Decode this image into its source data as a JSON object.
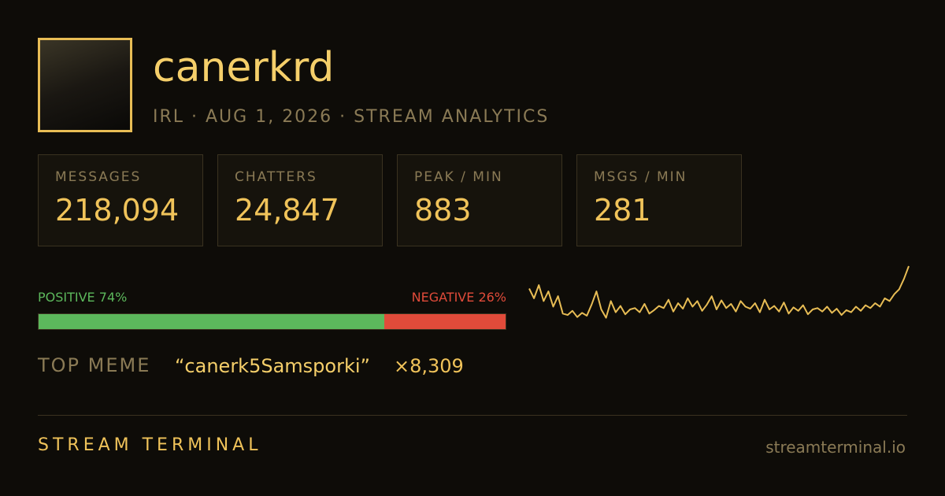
{
  "profile": {
    "name": "canerkrd",
    "subtitle": "IRL · AUG 1, 2026 · STREAM ANALYTICS"
  },
  "stats": [
    {
      "label": "MESSAGES",
      "value": "218,094"
    },
    {
      "label": "CHATTERS",
      "value": "24,847"
    },
    {
      "label": "PEAK / MIN",
      "value": "883"
    },
    {
      "label": "MSGS / MIN",
      "value": "281"
    }
  ],
  "sentiment": {
    "positive_name": "POSITIVE",
    "positive": 74,
    "positive_label": "74%",
    "positive_color": "#5cb85c",
    "negative_name": "NEGATIVE",
    "negative": 26,
    "negative_label": "26%",
    "negative_color": "#e04b3a"
  },
  "sparkline": {
    "type": "line",
    "color": "#e8bd55",
    "ylim": [
      0,
      883
    ],
    "values": [
      560,
      420,
      610,
      380,
      520,
      300,
      450,
      200,
      180,
      240,
      150,
      210,
      170,
      330,
      520,
      260,
      140,
      380,
      220,
      310,
      190,
      260,
      280,
      220,
      340,
      200,
      250,
      310,
      280,
      400,
      230,
      350,
      270,
      420,
      300,
      380,
      240,
      330,
      450,
      260,
      390,
      280,
      340,
      230,
      380,
      300,
      270,
      350,
      220,
      400,
      260,
      310,
      230,
      360,
      200,
      290,
      240,
      320,
      190,
      260,
      280,
      230,
      300,
      210,
      270,
      180,
      250,
      220,
      300,
      240,
      320,
      280,
      350,
      300,
      420,
      380,
      480,
      550,
      700,
      883
    ]
  },
  "top_meme": {
    "label": "TOP MEME",
    "text": "“canerk5Samsporki”",
    "count": "×8,309"
  },
  "footer": {
    "brand": "STREAM TERMINAL",
    "url": "streamterminal.io"
  }
}
